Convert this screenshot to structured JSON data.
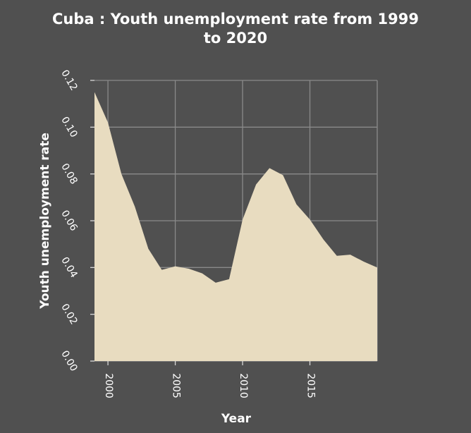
{
  "chart_data": {
    "type": "area",
    "title_line1": "Cuba : Youth unemployment rate from 1999",
    "title_line2": "to 2020",
    "xlabel": "Year",
    "ylabel": "Youth unemployment rate",
    "xlim": [
      1999,
      2020
    ],
    "ylim": [
      0,
      0.12
    ],
    "x_ticks": [
      2000,
      2005,
      2010,
      2015
    ],
    "x_tick_labels": [
      "2000",
      "2005",
      "2010",
      "2015"
    ],
    "y_ticks": [
      0,
      0.02,
      0.04,
      0.06,
      0.08,
      0.1,
      0.12
    ],
    "y_tick_labels": [
      "0.00",
      "0.02",
      "0.04",
      "0.06",
      "0.08",
      "0.10",
      "0.12"
    ],
    "grid": true,
    "fill_color": "#e8dcc0",
    "background_color": "#505050",
    "x": [
      1999,
      2000,
      2001,
      2002,
      2003,
      2004,
      2005,
      2006,
      2007,
      2008,
      2009,
      2010,
      2011,
      2012,
      2013,
      2014,
      2015,
      2016,
      2017,
      2018,
      2019,
      2020
    ],
    "values": [
      0.115,
      0.102,
      0.08,
      0.066,
      0.048,
      0.039,
      0.0405,
      0.0395,
      0.0375,
      0.0335,
      0.035,
      0.0605,
      0.0755,
      0.0825,
      0.0795,
      0.067,
      0.0605,
      0.052,
      0.045,
      0.0455,
      0.0425,
      0.04
    ]
  }
}
